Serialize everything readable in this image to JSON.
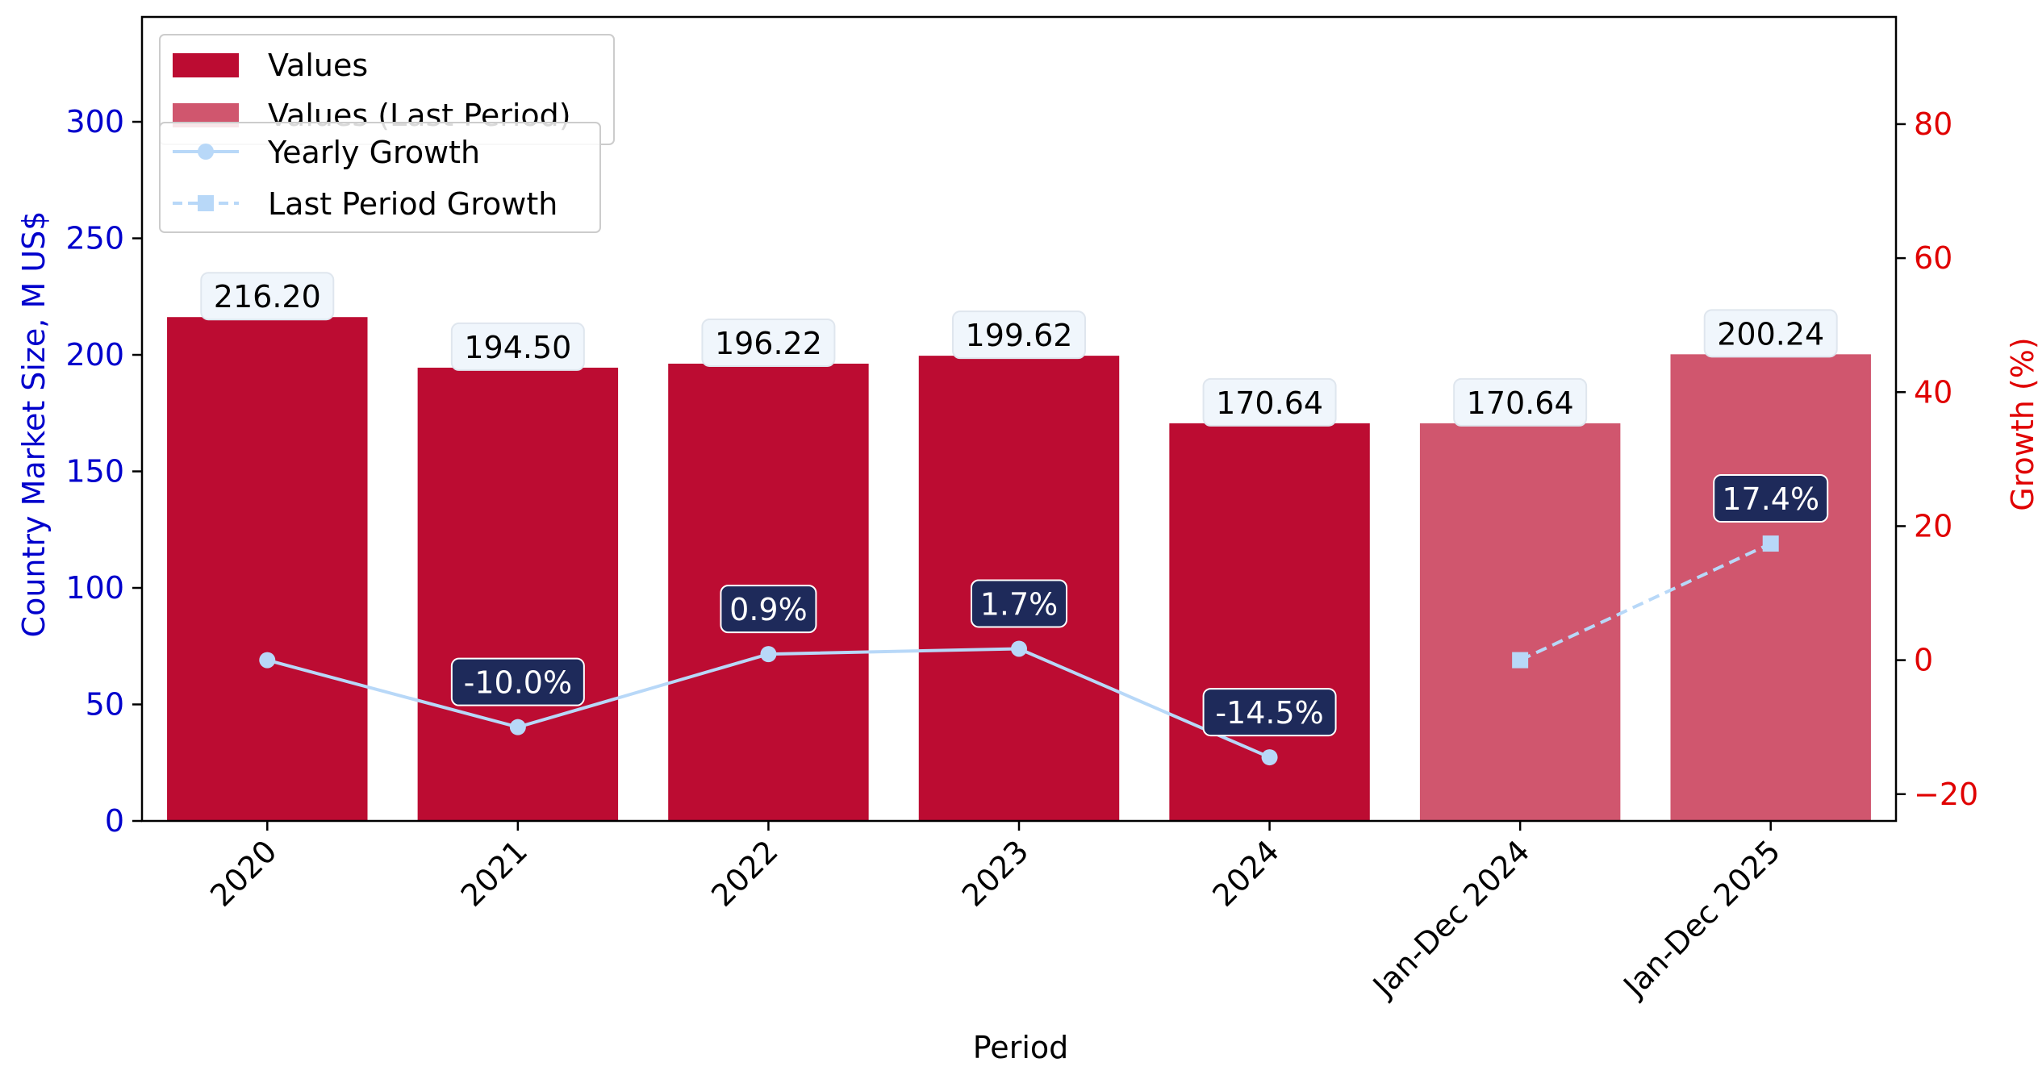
{
  "chart_data": {
    "type": "bar",
    "categories": [
      "2020",
      "2021",
      "2022",
      "2023",
      "2024",
      "Jan-Dec 2024",
      "Jan-Dec 2025"
    ],
    "values": [
      216.2,
      194.5,
      196.22,
      199.62,
      170.64,
      170.64,
      200.24
    ],
    "value_labels": [
      "216.20",
      "194.50",
      "196.22",
      "199.62",
      "170.64",
      "170.64",
      "200.24"
    ],
    "last_period_from_index": 5,
    "xlabel": "Period",
    "ylabel": "Country Market Size, M US$",
    "y2label": "Growth (%)",
    "ylim": [
      0,
      345
    ],
    "y2lim": [
      -24,
      96
    ],
    "yticks": [
      0,
      50,
      100,
      150,
      200,
      250,
      300
    ],
    "y2ticks": [
      -20,
      0,
      20,
      40,
      60,
      80
    ],
    "y2tick_labels": [
      "−20",
      "0",
      "20",
      "40",
      "60",
      "80"
    ],
    "yearly_growth": {
      "name": "Yearly Growth",
      "indices": [
        0,
        1,
        2,
        3,
        4
      ],
      "values": [
        0.0,
        -10.0,
        0.9,
        1.7,
        -14.5
      ],
      "labels": [
        "",
        "-10.0%",
        "0.9%",
        "1.7%",
        "-14.5%"
      ]
    },
    "last_period_growth": {
      "name": "Last Period Growth",
      "indices": [
        5,
        6
      ],
      "values": [
        0.0,
        17.4
      ],
      "labels": [
        "",
        "17.4%"
      ]
    },
    "legend": {
      "bars": [
        "Values",
        "Values (Last Period)"
      ],
      "lines": [
        "Yearly Growth",
        "Last Period Growth"
      ],
      "placement": "top-left"
    },
    "colors": {
      "bar": "#bc0c32",
      "bar_last_period": "#d0566e",
      "line": "#b8d8f8",
      "growth_label_bg": "#1e2a5a",
      "value_label_bg": "#f0f6fc",
      "left_axis": "#0000cc",
      "right_axis": "#e00000"
    }
  }
}
